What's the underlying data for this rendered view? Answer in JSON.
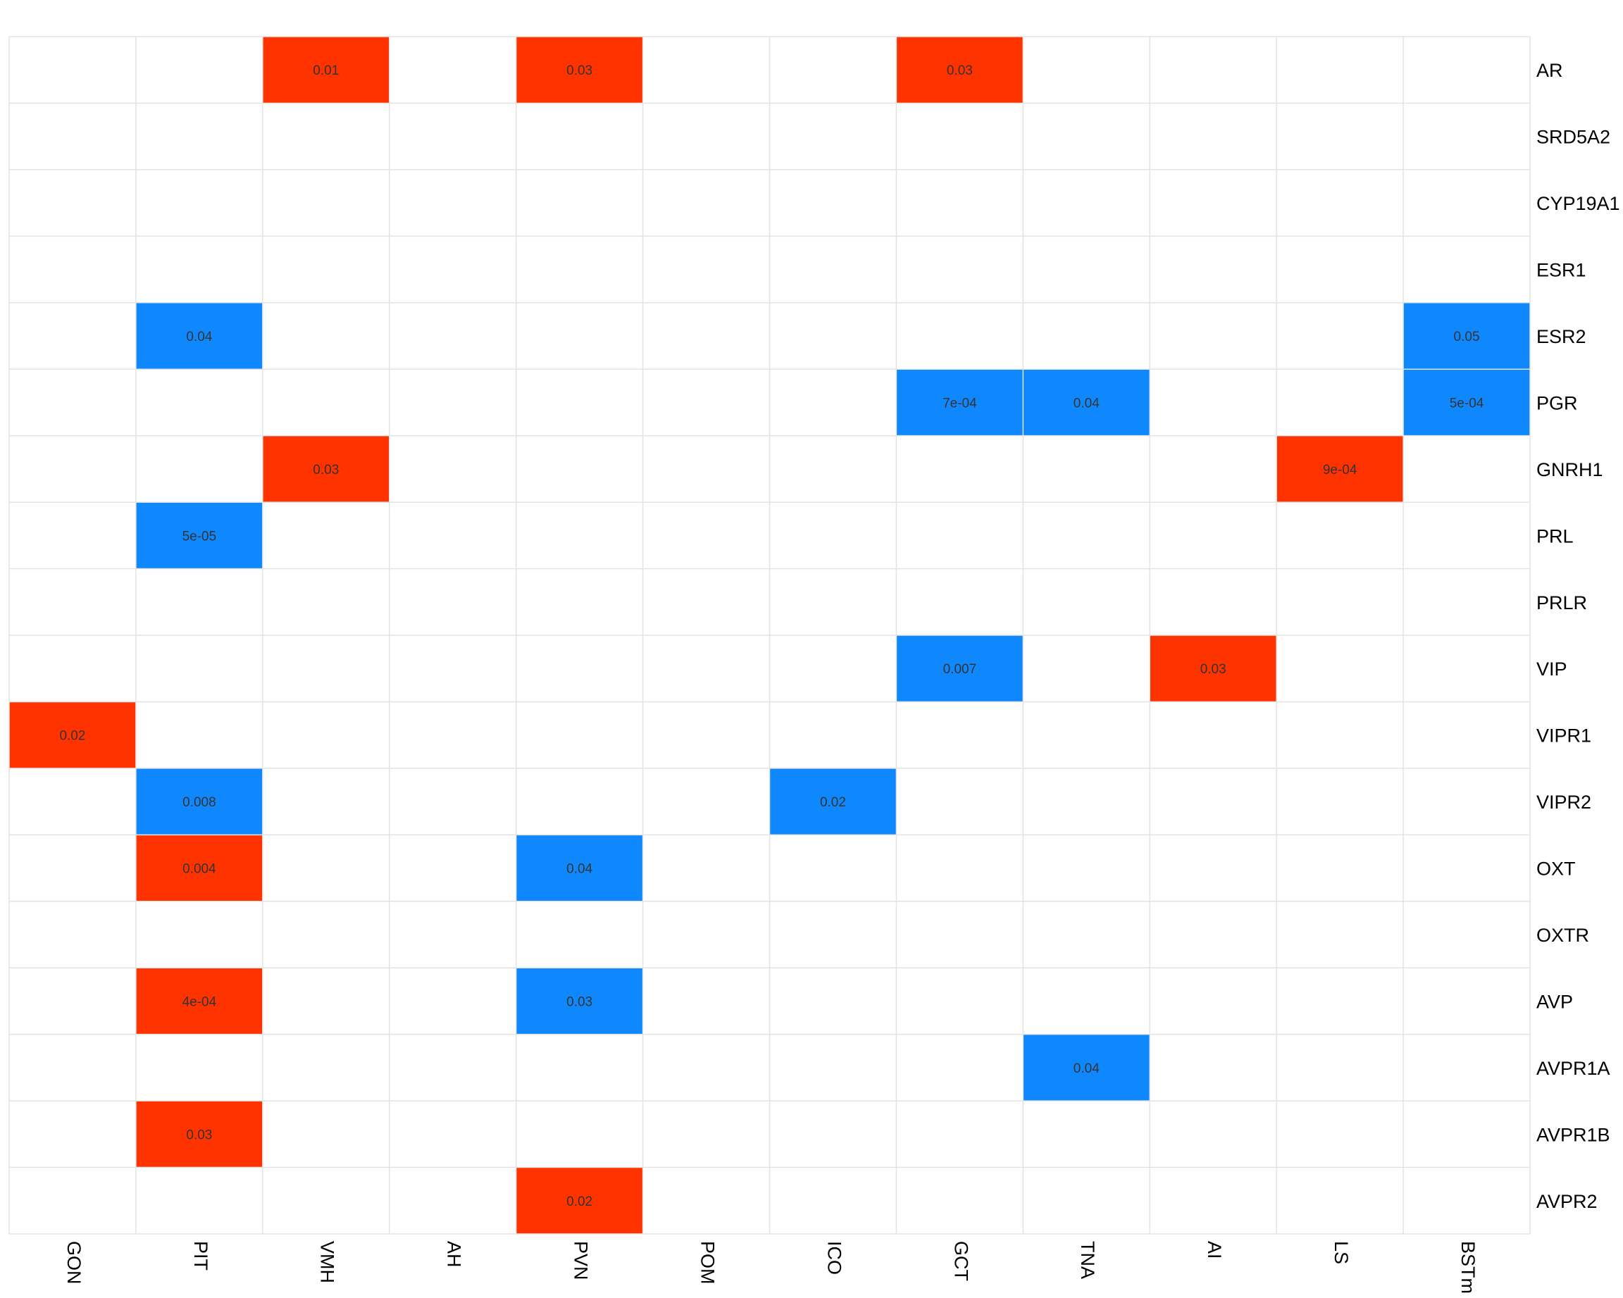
{
  "chart_data": {
    "type": "heatmap",
    "columns": [
      "GON",
      "PIT",
      "VMH",
      "AH",
      "PVN",
      "POM",
      "ICO",
      "GCT",
      "TNA",
      "AI",
      "LS",
      "BSTm"
    ],
    "rows": [
      "AR",
      "SRD5A2",
      "CYP19A1",
      "ESR1",
      "ESR2",
      "PGR",
      "GNRH1",
      "PRL",
      "PRLR",
      "VIP",
      "VIPR1",
      "VIPR2",
      "OXT",
      "OXTR",
      "AVP",
      "AVPR1A",
      "AVPR1B",
      "AVPR2"
    ],
    "colors": {
      "red": "#ff3300",
      "blue": "#0e88fc",
      "grid": "#e3e3e3",
      "background": "#ffffff"
    },
    "cells": [
      {
        "row": "AR",
        "col": "VMH",
        "label": "0.01",
        "color": "red"
      },
      {
        "row": "AR",
        "col": "PVN",
        "label": "0.03",
        "color": "red"
      },
      {
        "row": "AR",
        "col": "GCT",
        "label": "0.03",
        "color": "red"
      },
      {
        "row": "ESR2",
        "col": "PIT",
        "label": "0.04",
        "color": "blue"
      },
      {
        "row": "ESR2",
        "col": "BSTm",
        "label": "0.05",
        "color": "blue"
      },
      {
        "row": "PGR",
        "col": "GCT",
        "label": "7e-04",
        "color": "blue"
      },
      {
        "row": "PGR",
        "col": "TNA",
        "label": "0.04",
        "color": "blue"
      },
      {
        "row": "PGR",
        "col": "BSTm",
        "label": "5e-04",
        "color": "blue"
      },
      {
        "row": "GNRH1",
        "col": "VMH",
        "label": "0.03",
        "color": "red"
      },
      {
        "row": "GNRH1",
        "col": "LS",
        "label": "9e-04",
        "color": "red"
      },
      {
        "row": "PRL",
        "col": "PIT",
        "label": "5e-05",
        "color": "blue"
      },
      {
        "row": "VIP",
        "col": "GCT",
        "label": "0.007",
        "color": "blue"
      },
      {
        "row": "VIP",
        "col": "AI",
        "label": "0.03",
        "color": "red"
      },
      {
        "row": "VIPR1",
        "col": "GON",
        "label": "0.02",
        "color": "red"
      },
      {
        "row": "VIPR2",
        "col": "PIT",
        "label": "0.008",
        "color": "blue"
      },
      {
        "row": "VIPR2",
        "col": "ICO",
        "label": "0.02",
        "color": "blue"
      },
      {
        "row": "OXT",
        "col": "PIT",
        "label": "0.004",
        "color": "red"
      },
      {
        "row": "OXT",
        "col": "PVN",
        "label": "0.04",
        "color": "blue"
      },
      {
        "row": "AVP",
        "col": "PIT",
        "label": "4e-04",
        "color": "red"
      },
      {
        "row": "AVP",
        "col": "PVN",
        "label": "0.03",
        "color": "blue"
      },
      {
        "row": "AVPR1A",
        "col": "TNA",
        "label": "0.04",
        "color": "blue"
      },
      {
        "row": "AVPR1B",
        "col": "PIT",
        "label": "0.03",
        "color": "red"
      },
      {
        "row": "AVPR2",
        "col": "PVN",
        "label": "0.02",
        "color": "red"
      }
    ],
    "grid": true,
    "legend": "none"
  }
}
